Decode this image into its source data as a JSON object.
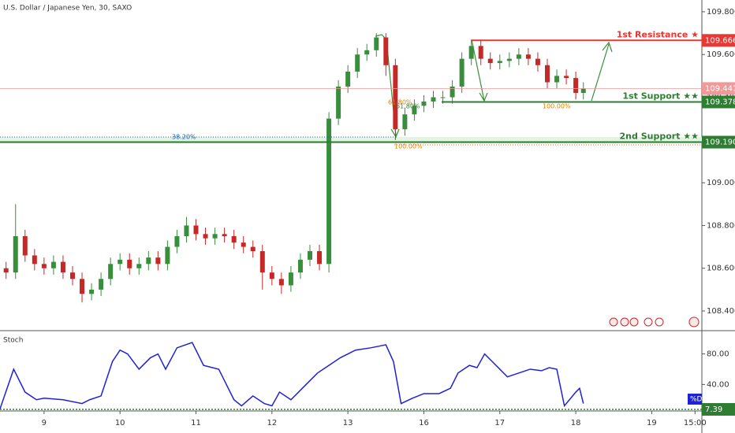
{
  "chart_data": [
    {
      "type": "candlestick",
      "title": "U.S. Dollar / Japanese Yen, 30, SAXO",
      "up_color": "#388e3c",
      "down_color": "#c62828",
      "x": [
        -0.5,
        -0.375,
        -0.25,
        -0.125,
        0,
        0.125,
        0.25,
        0.375,
        0.5,
        0.625,
        0.75,
        0.875,
        1,
        1.125,
        1.25,
        1.375,
        1.5,
        1.625,
        1.75,
        1.875,
        2,
        2.125,
        2.25,
        2.375,
        2.5,
        2.625,
        2.75,
        2.875,
        3,
        3.125,
        3.25,
        3.375,
        3.5,
        3.625,
        3.75,
        3.875,
        4,
        4.125,
        4.25,
        4.375,
        4.5,
        4.625,
        4.75,
        4.875,
        5,
        5.125,
        5.25,
        5.375,
        5.5,
        5.625,
        5.75,
        5.875,
        6,
        6.125,
        6.25,
        6.375,
        6.5,
        6.625,
        6.75,
        6.875,
        7,
        7.1
      ],
      "open": [
        108.6,
        108.58,
        108.75,
        108.66,
        108.62,
        108.6,
        108.63,
        108.58,
        108.55,
        108.48,
        108.5,
        108.55,
        108.62,
        108.64,
        108.6,
        108.62,
        108.65,
        108.62,
        108.7,
        108.75,
        108.8,
        108.76,
        108.74,
        108.76,
        108.75,
        108.72,
        108.7,
        108.68,
        108.58,
        108.55,
        108.52,
        108.58,
        108.64,
        108.68,
        108.62,
        109.3,
        109.45,
        109.52,
        109.6,
        109.62,
        109.68,
        109.55,
        109.25,
        109.32,
        109.36,
        109.38,
        109.4,
        109.4,
        109.45,
        109.58,
        109.64,
        109.58,
        109.56,
        109.57,
        109.58,
        109.6,
        109.58,
        109.55,
        109.47,
        109.5,
        109.49,
        109.42
      ],
      "high": [
        108.63,
        108.9,
        108.78,
        108.69,
        108.65,
        108.66,
        108.66,
        108.61,
        108.58,
        108.53,
        108.58,
        108.65,
        108.67,
        108.67,
        108.65,
        108.68,
        108.68,
        108.73,
        108.78,
        108.84,
        108.83,
        108.79,
        108.79,
        108.79,
        108.78,
        108.75,
        108.73,
        108.71,
        108.61,
        108.58,
        108.61,
        108.67,
        108.71,
        108.71,
        109.33,
        109.48,
        109.55,
        109.63,
        109.65,
        109.7,
        109.7,
        109.58,
        109.35,
        109.39,
        109.41,
        109.43,
        109.43,
        109.48,
        109.61,
        109.67,
        109.67,
        109.61,
        109.6,
        109.61,
        109.63,
        109.63,
        109.61,
        109.58,
        109.53,
        109.53,
        109.52,
        109.47
      ],
      "low": [
        108.55,
        108.55,
        108.63,
        108.59,
        108.57,
        108.57,
        108.55,
        108.52,
        108.44,
        108.45,
        108.47,
        108.52,
        108.59,
        108.57,
        108.57,
        108.59,
        108.59,
        108.59,
        108.67,
        108.72,
        108.73,
        108.71,
        108.71,
        108.72,
        108.69,
        108.67,
        108.65,
        108.5,
        108.52,
        108.48,
        108.49,
        108.55,
        108.61,
        108.59,
        108.58,
        109.27,
        109.42,
        109.49,
        109.57,
        109.59,
        109.5,
        109.2,
        109.22,
        109.29,
        109.33,
        109.35,
        109.37,
        109.37,
        109.42,
        109.55,
        109.55,
        109.53,
        109.53,
        109.54,
        109.55,
        109.55,
        109.52,
        109.44,
        109.44,
        109.46,
        109.39,
        109.39
      ],
      "close": [
        108.58,
        108.75,
        108.66,
        108.62,
        108.6,
        108.63,
        108.58,
        108.55,
        108.48,
        108.5,
        108.55,
        108.62,
        108.64,
        108.6,
        108.62,
        108.65,
        108.62,
        108.7,
        108.75,
        108.8,
        108.76,
        108.74,
        108.76,
        108.75,
        108.72,
        108.7,
        108.68,
        108.58,
        108.55,
        108.52,
        108.58,
        108.64,
        108.68,
        108.62,
        109.3,
        109.45,
        109.52,
        109.6,
        109.62,
        109.68,
        109.55,
        109.25,
        109.32,
        109.36,
        109.38,
        109.4,
        109.4,
        109.45,
        109.58,
        109.64,
        109.58,
        109.56,
        109.57,
        109.58,
        109.6,
        109.58,
        109.55,
        109.47,
        109.5,
        109.49,
        109.42,
        109.44
      ],
      "xlim": [
        -0.58,
        8.66
      ],
      "ylim": [
        108.308,
        109.855
      ],
      "yticks": [
        {
          "value": 108.4,
          "label": "108.400"
        },
        {
          "value": 108.6,
          "label": "108.600"
        },
        {
          "value": 108.8,
          "label": "108.800"
        },
        {
          "value": 109.0,
          "label": "109.000"
        },
        {
          "value": 109.2,
          "label": "109.200"
        },
        {
          "value": 109.4,
          "label": "109.400"
        },
        {
          "value": 109.6,
          "label": "109.600"
        },
        {
          "value": 109.8,
          "label": "109.800"
        }
      ],
      "levels": [
        {
          "name": "1st Resistance ★",
          "value": 109.666,
          "label": "109.666",
          "color": "#e53935"
        },
        {
          "name": "1st Support ★★",
          "value": 109.378,
          "label": "109.378",
          "color": "#2e7d32"
        },
        {
          "name": "2nd Support ★★",
          "value": 109.19,
          "label": "109.190",
          "color": "#2e7d32"
        }
      ],
      "current_price": {
        "value": 109.441,
        "label": "109.441",
        "color": "#ef9a9a"
      },
      "fib_labels": [
        "38.20%",
        "100.00%",
        "61.80%",
        "61.80%",
        "100.00%"
      ]
    },
    {
      "type": "line",
      "title": "Stoch",
      "x": [
        -0.58,
        -0.4,
        -0.25,
        -0.1,
        0,
        0.25,
        0.5,
        0.6,
        0.75,
        0.9,
        1.0,
        1.1,
        1.25,
        1.4,
        1.5,
        1.6,
        1.75,
        1.95,
        2.1,
        2.3,
        2.5,
        2.6,
        2.75,
        2.9,
        3.0,
        3.1,
        3.25,
        3.4,
        3.6,
        3.75,
        3.9,
        4.1,
        4.3,
        4.5,
        4.6,
        4.7,
        4.85,
        5.0,
        5.2,
        5.35,
        5.45,
        5.6,
        5.7,
        5.8,
        5.9,
        6.0,
        6.1,
        6.25,
        6.4,
        6.55,
        6.65,
        6.75,
        6.85,
        7.0,
        7.05,
        7.1
      ],
      "series": [
        {
          "name": "%D",
          "color": "#1e22d6",
          "values": [
            8,
            60,
            30,
            20,
            22,
            20,
            15,
            20,
            25,
            70,
            85,
            80,
            60,
            75,
            80,
            60,
            88,
            95,
            65,
            60,
            20,
            12,
            25,
            15,
            12,
            30,
            20,
            35,
            55,
            65,
            75,
            85,
            88,
            92,
            70,
            15,
            22,
            28,
            28,
            35,
            55,
            65,
            62,
            80,
            70,
            60,
            50,
            55,
            60,
            58,
            62,
            60,
            12,
            30,
            35,
            15
          ]
        }
      ],
      "current": {
        "value": 7.39,
        "label": "7.39",
        "color": "#2e7d32"
      },
      "xlim": [
        -0.58,
        8.66
      ],
      "ylim": [
        5.3,
        110.5
      ],
      "yticks": [
        {
          "value": 40,
          "label": "40.00"
        },
        {
          "value": 80,
          "label": "80.00"
        }
      ],
      "xticks": [
        {
          "value": 0,
          "label": "9"
        },
        {
          "value": 1,
          "label": "10"
        },
        {
          "value": 2,
          "label": "11"
        },
        {
          "value": 3,
          "label": "12"
        },
        {
          "value": 4,
          "label": "13"
        },
        {
          "value": 5,
          "label": "16"
        },
        {
          "value": 6,
          "label": "17"
        },
        {
          "value": 7,
          "label": "18"
        },
        {
          "value": 8,
          "label": "19"
        },
        {
          "value": 8.57,
          "label": "15:00"
        }
      ]
    }
  ]
}
